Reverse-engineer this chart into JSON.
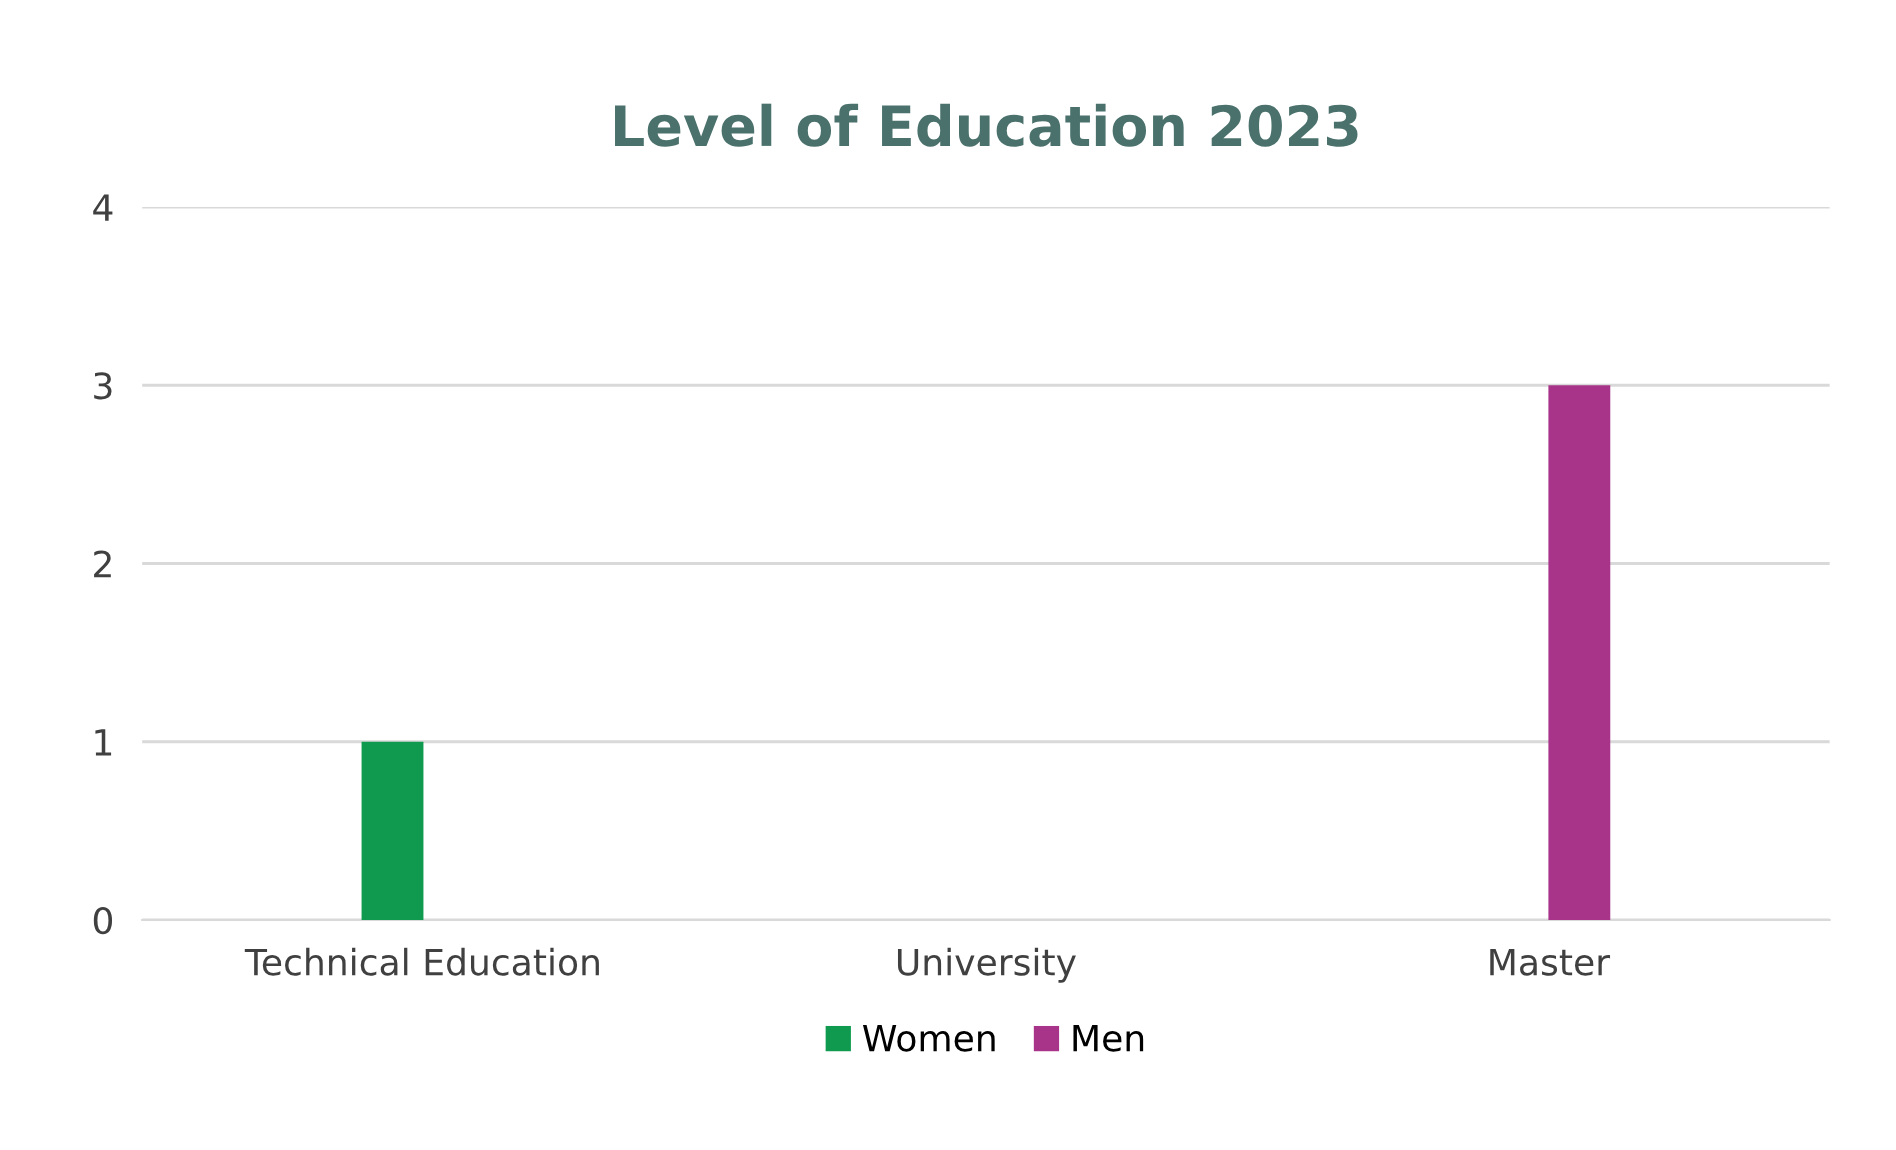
{
  "chart_data": {
    "type": "bar",
    "title": "Level of Education 2023",
    "categories": [
      "Technical Education",
      "University",
      "Master"
    ],
    "series": [
      {
        "name": "Women",
        "color": "#0f9a4f",
        "values": [
          1,
          0,
          0
        ]
      },
      {
        "name": "Men",
        "color": "#a8348a",
        "values": [
          0,
          0,
          3
        ]
      }
    ],
    "ylim": [
      0,
      4
    ],
    "yticks": [
      0,
      1,
      2,
      3,
      4
    ],
    "grid": "y",
    "legend": "bottom"
  }
}
